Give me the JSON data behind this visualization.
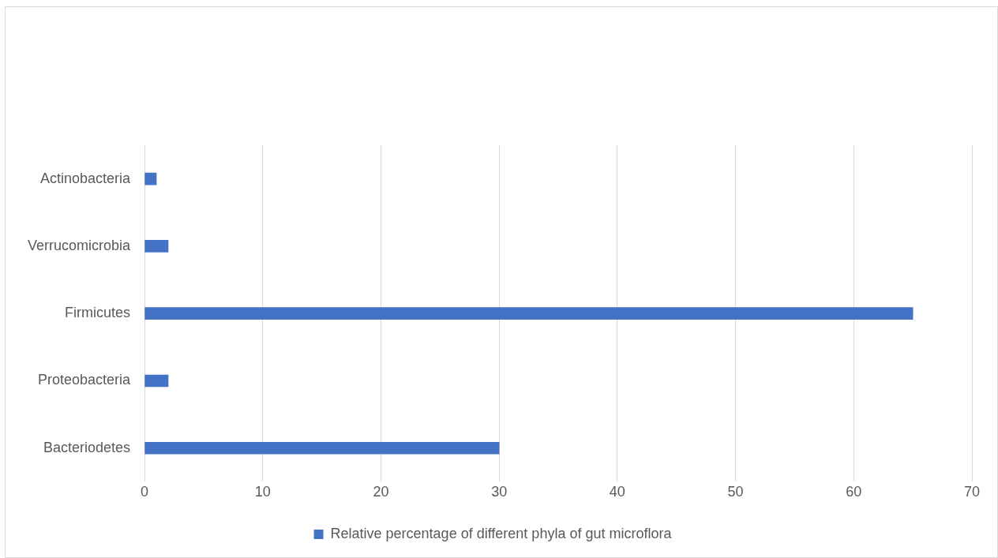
{
  "chart_data": {
    "type": "bar",
    "orientation": "horizontal",
    "categories": [
      "Actinobacteria",
      "Verrucomicrobia",
      "Firmicutes",
      "Proteobacteria",
      "Bacteriodetes"
    ],
    "series": [
      {
        "name": "Relative percentage of different phyla of gut microflora",
        "color": "#4472c4",
        "values": [
          1,
          2,
          65,
          2,
          30
        ]
      }
    ],
    "xlim": [
      0,
      70
    ],
    "xticks": [
      0,
      10,
      20,
      30,
      40,
      50,
      60,
      70
    ],
    "grid": "x",
    "legend": "bottom"
  }
}
